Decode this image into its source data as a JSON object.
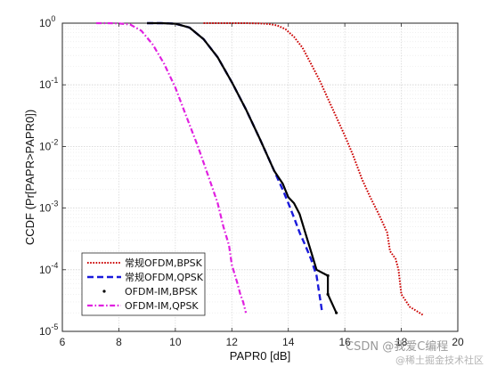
{
  "chart_data": {
    "type": "line",
    "xlabel": "PAPR0 [dB]",
    "ylabel": "CCDF (Pr[PAPR>PAPR0])",
    "xlim": [
      6,
      20
    ],
    "ylim": [
      1e-05,
      1
    ],
    "yscale": "log",
    "grid": true,
    "minor_grid": true,
    "legend_position": "bottom-left",
    "xticks": [
      "6",
      "8",
      "10",
      "12",
      "14",
      "16",
      "18",
      "20"
    ],
    "yticks": [
      {
        "base": "10",
        "exp": "0",
        "value": 1
      },
      {
        "base": "10",
        "exp": "-1",
        "value": 0.1
      },
      {
        "base": "10",
        "exp": "-2",
        "value": 0.01
      },
      {
        "base": "10",
        "exp": "-3",
        "value": 0.001
      },
      {
        "base": "10",
        "exp": "-4",
        "value": 0.0001
      },
      {
        "base": "10",
        "exp": "-5",
        "value": 1e-05
      }
    ],
    "series": [
      {
        "name": "常规OFDM,BPSK",
        "color": "#cc0000",
        "style": "dotted",
        "x": [
          11.0,
          11.5,
          12.0,
          12.5,
          13.0,
          13.3,
          13.6,
          13.9,
          14.2,
          14.5,
          14.8,
          15.1,
          15.4,
          15.7,
          16.0,
          16.3,
          16.6,
          16.9,
          17.2,
          17.5,
          17.6,
          17.8,
          17.9,
          18.0,
          18.3,
          18.5,
          18.8
        ],
        "y": [
          1.0,
          1.0,
          1.0,
          1.0,
          0.99,
          0.97,
          0.92,
          0.8,
          0.6,
          0.4,
          0.22,
          0.12,
          0.06,
          0.03,
          0.015,
          0.007,
          0.003,
          0.0015,
          0.0008,
          0.0004,
          0.0002,
          0.00015,
          0.0001,
          4e-05,
          2.5e-05,
          2.2e-05,
          1.8e-05
        ]
      },
      {
        "name": "常规OFDM,QPSK",
        "color": "#1a1adb",
        "style": "dashed",
        "x": [
          9.0,
          9.5,
          10.0,
          10.5,
          11.0,
          11.5,
          12.0,
          12.5,
          13.0,
          13.5,
          13.8,
          14.0,
          14.2,
          14.4,
          14.6,
          14.8,
          15.0,
          15.1,
          15.2
        ],
        "y": [
          1.0,
          1.0,
          0.98,
          0.85,
          0.55,
          0.28,
          0.11,
          0.04,
          0.013,
          0.004,
          0.002,
          0.0012,
          0.0007,
          0.0004,
          0.00025,
          0.00015,
          8e-05,
          4e-05,
          2e-05
        ]
      },
      {
        "name": "OFDM-IM,BPSK",
        "color": "#000000",
        "style": "solid-with-dots",
        "x": [
          9.0,
          9.5,
          10.0,
          10.5,
          11.0,
          11.5,
          12.0,
          12.5,
          13.0,
          13.5,
          13.8,
          14.0,
          14.2,
          14.4,
          14.6,
          14.8,
          15.0,
          15.4,
          15.4,
          15.7
        ],
        "y": [
          1.0,
          1.0,
          0.98,
          0.85,
          0.55,
          0.28,
          0.11,
          0.04,
          0.013,
          0.004,
          0.0025,
          0.0015,
          0.0012,
          0.0008,
          0.0004,
          0.0002,
          0.0001,
          8e-05,
          4e-05,
          2e-05
        ]
      },
      {
        "name": "OFDM-IM,QPSK",
        "color": "#e020e0",
        "style": "dash-dot",
        "x": [
          7.2,
          7.6,
          8.0,
          8.4,
          8.8,
          9.2,
          9.6,
          10.0,
          10.4,
          10.8,
          11.2,
          11.5,
          11.7,
          11.9,
          12.0,
          12.2,
          12.3,
          12.4,
          12.5
        ],
        "y": [
          1.0,
          1.0,
          0.99,
          0.95,
          0.75,
          0.45,
          0.22,
          0.09,
          0.03,
          0.01,
          0.003,
          0.0012,
          0.0005,
          0.00025,
          0.00012,
          6e-05,
          4e-05,
          3e-05,
          2e-05
        ]
      }
    ]
  },
  "watermark": {
    "main": "CSDN @我爱C编程",
    "sub": "@稀土掘金技术社区"
  }
}
